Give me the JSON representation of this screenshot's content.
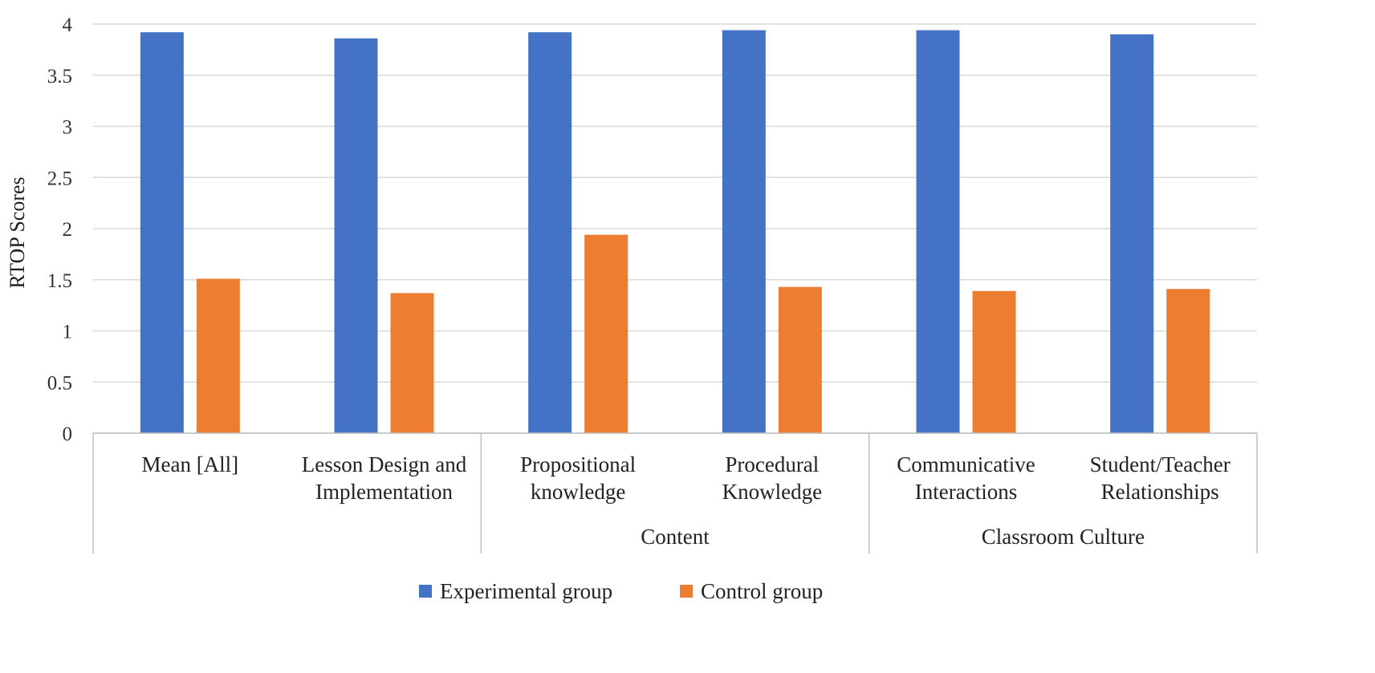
{
  "chart_data": {
    "type": "bar",
    "title": "",
    "xlabel": "",
    "ylabel": "RTOP Scores",
    "ylim": [
      0,
      4
    ],
    "yticks": [
      0,
      0.5,
      1,
      1.5,
      2,
      2.5,
      3,
      3.5,
      4
    ],
    "ytick_labels": [
      "0",
      "0.5",
      "1",
      "1.5",
      "2",
      "2.5",
      "3",
      "3.5",
      "4"
    ],
    "grid": true,
    "legend_position": "bottom",
    "categories": [
      [
        "Mean [All]"
      ],
      [
        "Lesson Design and",
        "Implementation"
      ],
      [
        "Propositional",
        "knowledge"
      ],
      [
        "Procedural",
        "Knowledge"
      ],
      [
        "Communicative",
        "Interactions"
      ],
      [
        "Student/Teacher",
        "Relationships"
      ]
    ],
    "category_groups": [
      {
        "label": "",
        "span": [
          0,
          1
        ]
      },
      {
        "label": "Content",
        "span": [
          2,
          3
        ]
      },
      {
        "label": "Classroom Culture",
        "span": [
          4,
          5
        ]
      }
    ],
    "series": [
      {
        "name": "Experimental group",
        "color": "#4472C4",
        "values": [
          3.92,
          3.86,
          3.92,
          3.94,
          3.94,
          3.9
        ]
      },
      {
        "name": "Control group",
        "color": "#ED7D31",
        "values": [
          1.51,
          1.37,
          1.94,
          1.43,
          1.39,
          1.41
        ]
      }
    ]
  }
}
